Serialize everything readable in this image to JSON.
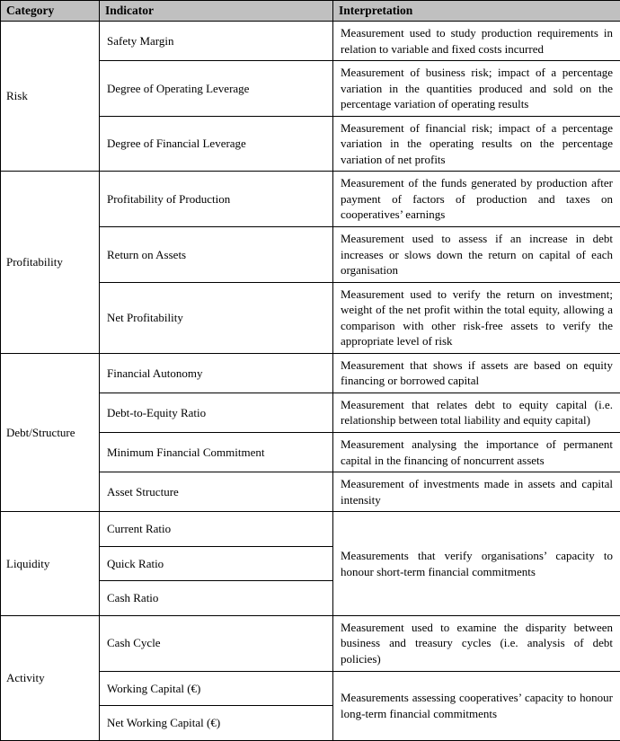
{
  "headers": {
    "category": "Category",
    "indicator": "Indicator",
    "interpretation": "Interpretation"
  },
  "risk": {
    "category": "Risk",
    "rows": [
      {
        "indicator": "Safety Margin",
        "interpretation": "Measurement used to study production requirements in relation to variable and fixed costs incurred"
      },
      {
        "indicator": "Degree of Operating Leverage",
        "interpretation": "Measurement of business risk; impact of a percentage variation in the quantities produced and sold on the percentage variation of operating results"
      },
      {
        "indicator": "Degree of Financial Leverage",
        "interpretation": "Measurement of financial risk; impact of a percentage variation in the operating results on the percentage variation of net profits"
      }
    ]
  },
  "profitability": {
    "category": "Profitability",
    "rows": [
      {
        "indicator": "Profitability of Production",
        "interpretation": "Measurement of the funds generated by production after payment of factors of production and taxes on cooperatives’ earnings"
      },
      {
        "indicator": "Return on Assets",
        "interpretation": "Measurement used to assess if an increase in debt increases or slows down the return on capital of each organisation"
      },
      {
        "indicator": "Net Profitability",
        "interpretation": "Measurement used to verify the return on investment; weight of the net profit within the total equity, allowing a comparison with other risk-free assets to verify the appropriate level of risk"
      }
    ]
  },
  "debt": {
    "category": "Debt/Structure",
    "rows": [
      {
        "indicator": "Financial Autonomy",
        "interpretation": "Measurement that shows if assets are based on equity financing or borrowed capital"
      },
      {
        "indicator": "Debt-to-Equity Ratio",
        "interpretation": "Measurement that relates debt to equity capital (i.e. relationship between total liability and equity capital)"
      },
      {
        "indicator": "Minimum Financial Commitment",
        "interpretation": "Measurement analysing the importance of permanent capital in the financing of noncurrent assets"
      },
      {
        "indicator": "Asset Structure",
        "interpretation": "Measurement of investments made in assets and capital intensity"
      }
    ]
  },
  "liquidity": {
    "category": "Liquidity",
    "interpretation_shared": "Measurements that verify organisations’ capacity to honour short-term financial commitments",
    "rows": [
      {
        "indicator": "Current Ratio"
      },
      {
        "indicator": "Quick Ratio"
      },
      {
        "indicator": "Cash Ratio"
      }
    ]
  },
  "activity": {
    "category": "Activity",
    "r0": {
      "indicator": "Cash Cycle",
      "interpretation": "Measurement used to examine the disparity between business and treasury cycles (i.e. analysis of debt policies)"
    },
    "r1": {
      "indicator": "Working Capital (€)"
    },
    "r2": {
      "indicator": "Net Working Capital (€)"
    },
    "interpretation_shared": "Measurements assessing cooperatives’ capacity to honour long-term financial commitments"
  }
}
